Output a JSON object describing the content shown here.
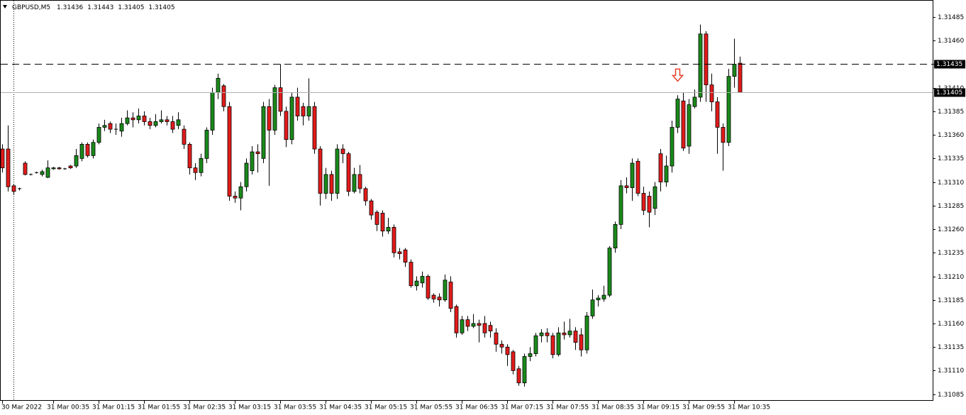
{
  "chart_data": {
    "type": "candlestick",
    "title": "GBPUSD,M5",
    "header_values": [
      1.31436,
      1.31443,
      1.31405,
      1.31405
    ],
    "categories": [
      "30 Mar 2022",
      null,
      null,
      null,
      null,
      null,
      null,
      null,
      null,
      "31 Mar 00:35",
      null,
      null,
      null,
      null,
      null,
      null,
      null,
      "31 Mar 01:15",
      null,
      null,
      null,
      null,
      null,
      null,
      null,
      "31 Mar 01:55",
      null,
      null,
      null,
      null,
      null,
      null,
      null,
      "31 Mar 02:35",
      null,
      null,
      null,
      null,
      null,
      null,
      null,
      "31 Mar 03:15",
      null,
      null,
      null,
      null,
      null,
      null,
      null,
      "31 Mar 03:55",
      null,
      null,
      null,
      null,
      null,
      null,
      null,
      "31 Mar 04:35",
      null,
      null,
      null,
      null,
      null,
      null,
      null,
      "31 Mar 05:15",
      null,
      null,
      null,
      null,
      null,
      null,
      null,
      "31 Mar 05:55",
      null,
      null,
      null,
      null,
      null,
      null,
      null,
      "31 Mar 06:35",
      null,
      null,
      null,
      null,
      null,
      null,
      null,
      "31 Mar 07:15",
      null,
      null,
      null,
      null,
      null,
      null,
      null,
      "31 Mar 07:55",
      null,
      null,
      null,
      null,
      null,
      null,
      null,
      "31 Mar 08:35",
      null,
      null,
      null,
      null,
      null,
      null,
      null,
      "31 Mar 09:15",
      null,
      null,
      null,
      null,
      null,
      null,
      null,
      "31 Mar 09:55",
      null,
      null,
      null,
      null,
      null,
      null,
      null,
      "31 Mar 10:35",
      null
    ],
    "open": [
      1.31345,
      1.31345,
      1.31306,
      1.31303,
      1.3133,
      1.31318,
      1.3132,
      1.31318,
      1.31315,
      1.31324,
      1.31325,
      1.31324,
      1.31327,
      1.31327,
      1.31335,
      1.3135,
      1.31338,
      1.31352,
      1.31368,
      1.31372,
      1.31366,
      1.31364,
      1.31372,
      1.31378,
      1.31376,
      1.3138,
      1.31374,
      1.3137,
      1.31374,
      1.31376,
      1.31374,
      1.3137,
      1.31366,
      1.3135,
      1.31325,
      1.3132,
      1.31335,
      1.31365,
      1.31405,
      1.31412,
      1.3139,
      1.31295,
      1.31293,
      1.31305,
      1.31322,
      1.31342,
      1.31335,
      1.3139,
      1.31365,
      1.3141,
      1.31385,
      1.31355,
      1.314,
      1.3139,
      1.3138,
      1.3139,
      1.31345,
      1.31298,
      1.31318,
      1.31298,
      1.31345,
      1.3134,
      1.313,
      1.31318,
      1.31303,
      1.3129,
      1.31278,
      1.31277,
      1.31258,
      1.31262,
      1.31236,
      1.31238,
      1.31225,
      1.312,
      1.31203,
      1.3121,
      1.3119,
      1.31188,
      1.31185,
      1.31204,
      1.31178,
      1.3115,
      1.31164,
      1.31157,
      1.3116,
      1.3116,
      1.31158,
      1.3115,
      1.31138,
      1.31135,
      1.3113,
      1.31112,
      1.31097,
      1.31125,
      1.31128,
      1.31147,
      1.3115,
      1.31147,
      1.31127,
      1.3115,
      1.31148,
      1.31152,
      1.31148,
      1.31132,
      1.31168,
      1.31185,
      1.31186,
      1.3119,
      1.3124,
      1.31265,
      1.31306,
      1.31304,
      1.31332,
      1.31298,
      1.31295,
      1.31282,
      1.3134,
      1.3131,
      1.31327,
      1.31368,
      1.31396,
      1.31348,
      1.3139,
      1.314,
      1.31467,
      1.31413,
      1.31395,
      1.31368,
      1.31352,
      1.31422,
      1.31436
    ],
    "high": [
      1.3135,
      1.3137,
      1.31308,
      1.31304,
      1.31332,
      1.31319,
      1.31321,
      1.31323,
      1.31333,
      1.31326,
      1.31326,
      1.31325,
      1.31328,
      1.31345,
      1.31352,
      1.31352,
      1.31355,
      1.31372,
      1.31376,
      1.31374,
      1.31372,
      1.31378,
      1.31386,
      1.31384,
      1.31388,
      1.31385,
      1.31378,
      1.31382,
      1.31386,
      1.3138,
      1.3138,
      1.31384,
      1.3137,
      1.31352,
      1.3133,
      1.3134,
      1.31368,
      1.3141,
      1.31425,
      1.31414,
      1.31395,
      1.313,
      1.3131,
      1.31335,
      1.31348,
      1.3135,
      1.31395,
      1.31398,
      1.31413,
      1.31435,
      1.3139,
      1.31405,
      1.3141,
      1.31394,
      1.3142,
      1.31395,
      1.31348,
      1.31325,
      1.31322,
      1.3135,
      1.3135,
      1.31342,
      1.31325,
      1.31328,
      1.31305,
      1.31292,
      1.3128,
      1.3128,
      1.31272,
      1.31265,
      1.3124,
      1.3124,
      1.31228,
      1.3121,
      1.31215,
      1.31212,
      1.31192,
      1.31192,
      1.31212,
      1.3121,
      1.3118,
      1.31168,
      1.31168,
      1.3117,
      1.31164,
      1.31168,
      1.31162,
      1.31155,
      1.31142,
      1.31138,
      1.31132,
      1.31115,
      1.31128,
      1.31135,
      1.3115,
      1.31154,
      1.31155,
      1.3115,
      1.31156,
      1.31162,
      1.31165,
      1.31156,
      1.31155,
      1.31172,
      1.31196,
      1.3119,
      1.312,
      1.31242,
      1.31268,
      1.31312,
      1.31315,
      1.31335,
      1.31335,
      1.31305,
      1.313,
      1.3131,
      1.31345,
      1.31338,
      1.31375,
      1.31402,
      1.31405,
      1.31398,
      1.31408,
      1.31477,
      1.3147,
      1.31425,
      1.314,
      1.31372,
      1.3143,
      1.31462,
      1.31443
    ],
    "low": [
      1.3132,
      1.313,
      1.31297,
      1.31301,
      1.31317,
      1.31317,
      1.31319,
      1.31316,
      1.31314,
      1.31323,
      1.31323,
      1.31323,
      1.31324,
      1.31325,
      1.31332,
      1.31336,
      1.31335,
      1.3135,
      1.31364,
      1.31362,
      1.3136,
      1.31358,
      1.3137,
      1.31368,
      1.31372,
      1.3137,
      1.31366,
      1.31368,
      1.31372,
      1.3137,
      1.31362,
      1.31366,
      1.31345,
      1.31318,
      1.31312,
      1.31316,
      1.3133,
      1.3136,
      1.31398,
      1.31385,
      1.3129,
      1.31288,
      1.3128,
      1.313,
      1.31318,
      1.3132,
      1.3133,
      1.31306,
      1.3136,
      1.3138,
      1.31347,
      1.3135,
      1.31375,
      1.3137,
      1.31375,
      1.3134,
      1.31285,
      1.31292,
      1.3129,
      1.31292,
      1.3133,
      1.31295,
      1.31298,
      1.31298,
      1.31285,
      1.3127,
      1.31258,
      1.31252,
      1.31255,
      1.3123,
      1.31228,
      1.3122,
      1.31198,
      1.31195,
      1.31198,
      1.31185,
      1.31182,
      1.31178,
      1.31183,
      1.31172,
      1.31145,
      1.31148,
      1.31152,
      1.31155,
      1.3114,
      1.31145,
      1.31145,
      1.3113,
      1.31128,
      1.31115,
      1.31106,
      1.31094,
      1.31093,
      1.3112,
      1.31125,
      1.3114,
      1.3114,
      1.31123,
      1.31125,
      1.31143,
      1.31145,
      1.31132,
      1.31125,
      1.31128,
      1.31165,
      1.31178,
      1.31183,
      1.31188,
      1.31235,
      1.3126,
      1.31298,
      1.3129,
      1.31295,
      1.31275,
      1.31262,
      1.31275,
      1.313,
      1.31305,
      1.3132,
      1.31362,
      1.31343,
      1.3134,
      1.31388,
      1.31395,
      1.31395,
      1.31385,
      1.3134,
      1.31322,
      1.31348,
      1.3141,
      1.31405
    ],
    "close": [
      1.31325,
      1.31305,
      1.313,
      1.31303,
      1.31318,
      1.31318,
      1.3132,
      1.31321,
      1.31325,
      1.31325,
      1.31324,
      1.31324,
      1.31325,
      1.31338,
      1.3135,
      1.31338,
      1.31352,
      1.31368,
      1.3137,
      1.31366,
      1.31366,
      1.31372,
      1.31378,
      1.31376,
      1.3138,
      1.31374,
      1.3137,
      1.31374,
      1.31376,
      1.31374,
      1.31366,
      1.31376,
      1.3135,
      1.31325,
      1.3132,
      1.31335,
      1.31365,
      1.31405,
      1.3142,
      1.3139,
      1.31295,
      1.31293,
      1.31305,
      1.3133,
      1.31342,
      1.3134,
      1.3139,
      1.31365,
      1.3141,
      1.31385,
      1.31355,
      1.314,
      1.3138,
      1.3138,
      1.3139,
      1.31345,
      1.31298,
      1.31318,
      1.31298,
      1.31345,
      1.3134,
      1.313,
      1.31318,
      1.31303,
      1.3129,
      1.31275,
      1.31265,
      1.31258,
      1.31262,
      1.31235,
      1.31234,
      1.31225,
      1.312,
      1.31205,
      1.3121,
      1.31187,
      1.31186,
      1.31185,
      1.31206,
      1.31176,
      1.3115,
      1.31164,
      1.31157,
      1.3116,
      1.31158,
      1.3115,
      1.31152,
      1.31138,
      1.31135,
      1.31127,
      1.3111,
      1.31097,
      1.31125,
      1.31128,
      1.31147,
      1.3115,
      1.31147,
      1.31127,
      1.3115,
      1.31148,
      1.31152,
      1.3114,
      1.31132,
      1.31168,
      1.31185,
      1.31187,
      1.3119,
      1.3124,
      1.31265,
      1.31306,
      1.31304,
      1.3133,
      1.31298,
      1.3128,
      1.31278,
      1.31305,
      1.3131,
      1.31327,
      1.31368,
      1.31398,
      1.31346,
      1.31392,
      1.314,
      1.31467,
      1.31413,
      1.31395,
      1.31368,
      1.31352,
      1.31422,
      1.31435,
      1.31405
    ],
    "up_color": "#1a8a1a",
    "down_color": "#e31b1b",
    "ylim": [
      1.31078,
      1.31503
    ],
    "yticks": [
      1.31485,
      {
        "value": 1.3146,
        "label": "1.31460"
      },
      1.31435,
      {
        "value": 1.3141,
        "label": "1.31410"
      },
      1.31385,
      {
        "value": 1.3136,
        "label": "1.31360"
      },
      1.31335,
      {
        "value": 1.3131,
        "label": "1.31310"
      },
      1.31285,
      {
        "value": 1.3126,
        "label": "1.31260"
      },
      1.31235,
      {
        "value": 1.3121,
        "label": "1.31210"
      },
      1.31185,
      {
        "value": 1.3116,
        "label": "1.31160"
      },
      1.31135,
      {
        "value": 1.3111,
        "label": "1.31110"
      },
      1.31085
    ],
    "levels": [
      {
        "value": 1.31435,
        "style": "dashed"
      },
      {
        "value": 1.31405,
        "style": "solid"
      }
    ],
    "arrows": [
      {
        "index": 119,
        "value": 1.31423,
        "color": "#e8402a"
      }
    ]
  }
}
